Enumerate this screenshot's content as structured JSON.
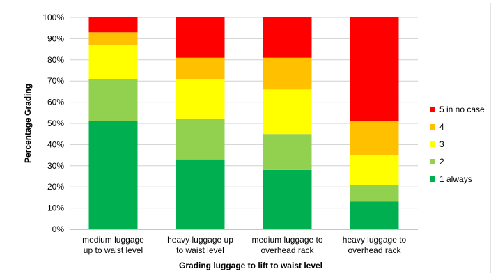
{
  "chart_data": {
    "type": "bar",
    "stacked": true,
    "title": "",
    "xlabel": "Grading luggage to lift to waist level",
    "ylabel": "Percentage Grading",
    "ylim": [
      0,
      100
    ],
    "y_tick_labels": [
      "0%",
      "10%",
      "20%",
      "30%",
      "40%",
      "50%",
      "60%",
      "70%",
      "80%",
      "90%",
      "100%"
    ],
    "categories": [
      [
        "medium luggage",
        "up to waist level"
      ],
      [
        "heavy luggage up",
        "to waist level"
      ],
      [
        "medium luggage to",
        "overhead rack"
      ],
      [
        "heavy luggage to",
        "overhead rack"
      ]
    ],
    "series": [
      {
        "name": "1 always",
        "color": "#00b050",
        "values": [
          51,
          33,
          28,
          13
        ]
      },
      {
        "name": "2",
        "color": "#92d050",
        "values": [
          20,
          19,
          17,
          8
        ]
      },
      {
        "name": "3",
        "color": "#ffff00",
        "values": [
          16,
          19,
          21,
          14
        ]
      },
      {
        "name": "4",
        "color": "#ffc000",
        "values": [
          6,
          10,
          15,
          16
        ]
      },
      {
        "name": "5 in no case",
        "color": "#ff0000",
        "values": [
          7,
          19,
          19,
          49
        ]
      }
    ],
    "legend_position": "right",
    "grid": true
  }
}
